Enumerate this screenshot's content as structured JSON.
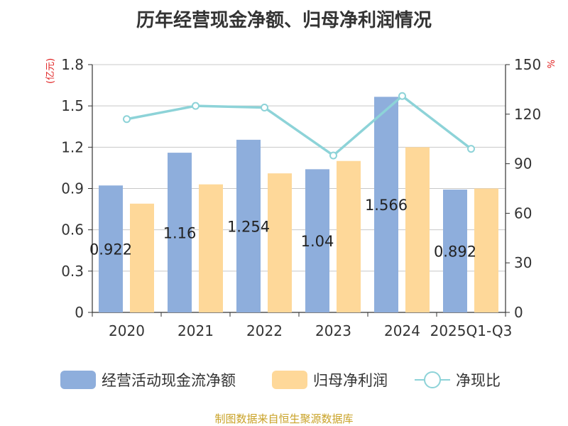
{
  "chart_data": {
    "type": "bar",
    "title": "历年经营现金净额、归母净利润情况",
    "categories": [
      "2020",
      "2021",
      "2022",
      "2023",
      "2024",
      "2025Q1-Q3"
    ],
    "series": [
      {
        "name": "经营活动现金流净额",
        "type": "bar",
        "axis": "left",
        "color": "#8eaedc",
        "values": [
          0.922,
          1.16,
          1.254,
          1.04,
          1.566,
          0.892
        ],
        "labels": [
          "0.922",
          "1.16",
          "1.254",
          "1.04",
          "1.566",
          "0.892"
        ]
      },
      {
        "name": "归母净利润",
        "type": "bar",
        "axis": "left",
        "color": "#fed899",
        "values": [
          0.79,
          0.93,
          1.01,
          1.1,
          1.2,
          0.9
        ]
      },
      {
        "name": "净现比",
        "type": "line",
        "axis": "right",
        "color": "#8dd3d8",
        "values": [
          117,
          125,
          124,
          95,
          131,
          99
        ]
      }
    ],
    "y_left": {
      "unit": "(亿元)",
      "ylim": [
        0,
        1.8
      ],
      "ticks": [
        "0",
        "0.3",
        "0.6",
        "0.9",
        "1.2",
        "1.5",
        "1.8"
      ]
    },
    "y_right": {
      "unit": "%",
      "ylim": [
        0,
        150
      ],
      "ticks": [
        "0",
        "30",
        "60",
        "90",
        "120",
        "150"
      ]
    },
    "grid": true,
    "legend_position": "bottom",
    "source": "制图数据来自恒生聚源数据库"
  }
}
